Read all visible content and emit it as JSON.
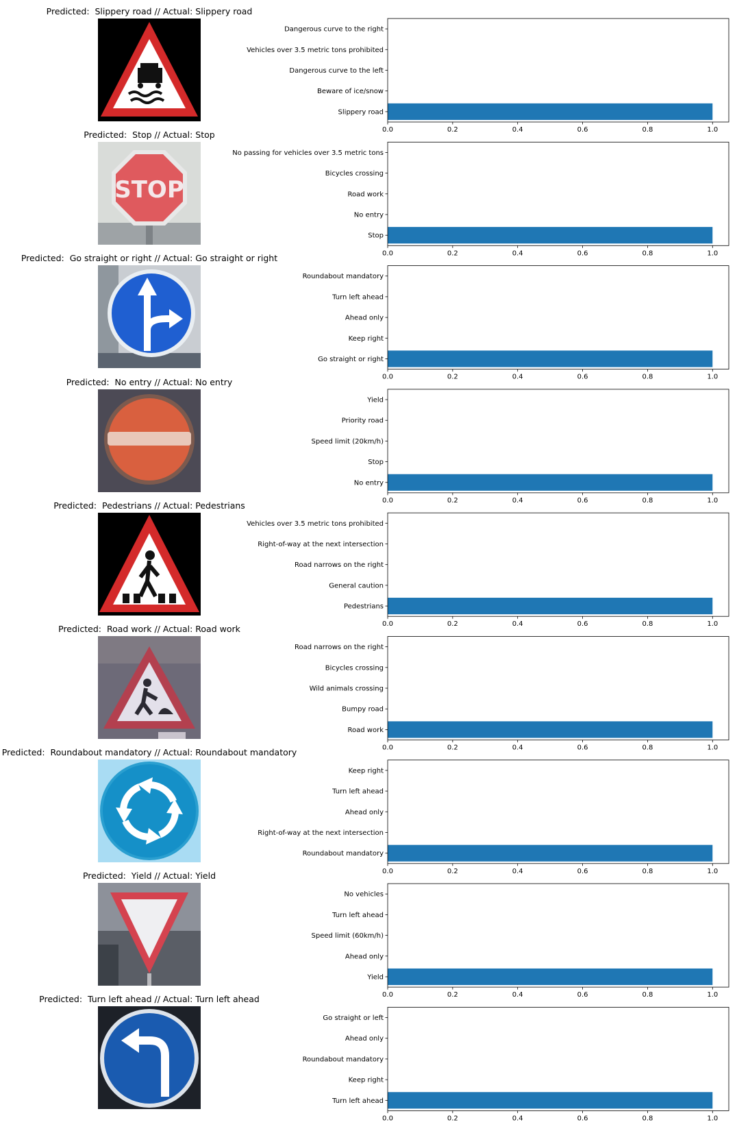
{
  "figure": {
    "panels": [
      {
        "title": "Predicted:  Slippery road // Actual: Slippery road",
        "sign": "slippery-road-sign-image"
      },
      {
        "title": "Predicted:  Stop // Actual: Stop",
        "sign": "stop-sign-image"
      },
      {
        "title": "Predicted:  Go straight or right // Actual: Go straight or right",
        "sign": "go-straight-or-right-sign-image"
      },
      {
        "title": "Predicted:  No entry // Actual: No entry",
        "sign": "no-entry-sign-image"
      },
      {
        "title": "Predicted:  Pedestrians // Actual: Pedestrians",
        "sign": "pedestrians-sign-image"
      },
      {
        "title": "Predicted:  Road work // Actual: Road work",
        "sign": "road-work-sign-image"
      },
      {
        "title": "Predicted:  Roundabout mandatory // Actual: Roundabout mandatory",
        "sign": "roundabout-mandatory-sign-image"
      },
      {
        "title": "Predicted:  Yield // Actual: Yield",
        "sign": "yield-sign-image"
      },
      {
        "title": "Predicted:  Turn left ahead // Actual: Turn left ahead",
        "sign": "turn-left-ahead-sign-image"
      }
    ]
  },
  "colors": {
    "bar": "#1f77b4"
  },
  "chart_data": [
    {
      "type": "bar",
      "orientation": "horizontal",
      "categories": [
        "Slippery road",
        "Beware of ice/snow",
        "Dangerous curve to the left",
        "Vehicles over 3.5 metric tons prohibited",
        "Dangerous curve to the right"
      ],
      "values": [
        1.0,
        0.0,
        0.0,
        0.0,
        0.0
      ],
      "xlim": [
        0,
        1.05
      ],
      "xticks": [
        "0.0",
        "0.2",
        "0.4",
        "0.6",
        "0.8",
        "1.0"
      ]
    },
    {
      "type": "bar",
      "orientation": "horizontal",
      "categories": [
        "Stop",
        "No entry",
        "Road work",
        "Bicycles crossing",
        "No passing for vehicles over 3.5 metric tons"
      ],
      "values": [
        1.0,
        0.0,
        0.0,
        0.0,
        0.0
      ],
      "xlim": [
        0,
        1.05
      ],
      "xticks": [
        "0.0",
        "0.2",
        "0.4",
        "0.6",
        "0.8",
        "1.0"
      ]
    },
    {
      "type": "bar",
      "orientation": "horizontal",
      "categories": [
        "Go straight or right",
        "Keep right",
        "Ahead only",
        "Turn left ahead",
        "Roundabout mandatory"
      ],
      "values": [
        1.0,
        0.0,
        0.0,
        0.0,
        0.0
      ],
      "xlim": [
        0,
        1.05
      ],
      "xticks": [
        "0.0",
        "0.2",
        "0.4",
        "0.6",
        "0.8",
        "1.0"
      ]
    },
    {
      "type": "bar",
      "orientation": "horizontal",
      "categories": [
        "No entry",
        "Stop",
        "Speed limit (20km/h)",
        "Priority road",
        "Yield"
      ],
      "values": [
        1.0,
        0.0,
        0.0,
        0.0,
        0.0
      ],
      "xlim": [
        0,
        1.05
      ],
      "xticks": [
        "0.0",
        "0.2",
        "0.4",
        "0.6",
        "0.8",
        "1.0"
      ]
    },
    {
      "type": "bar",
      "orientation": "horizontal",
      "categories": [
        "Pedestrians",
        "General caution",
        "Road narrows on the right",
        "Right-of-way at the next intersection",
        "Vehicles over 3.5 metric tons prohibited"
      ],
      "values": [
        1.0,
        0.0,
        0.0,
        0.0,
        0.0
      ],
      "xlim": [
        0,
        1.05
      ],
      "xticks": [
        "0.0",
        "0.2",
        "0.4",
        "0.6",
        "0.8",
        "1.0"
      ]
    },
    {
      "type": "bar",
      "orientation": "horizontal",
      "categories": [
        "Road work",
        "Bumpy road",
        "Wild animals crossing",
        "Bicycles crossing",
        "Road narrows on the right"
      ],
      "values": [
        1.0,
        0.0,
        0.0,
        0.0,
        0.0
      ],
      "xlim": [
        0,
        1.05
      ],
      "xticks": [
        "0.0",
        "0.2",
        "0.4",
        "0.6",
        "0.8",
        "1.0"
      ]
    },
    {
      "type": "bar",
      "orientation": "horizontal",
      "categories": [
        "Roundabout mandatory",
        "Right-of-way at the next intersection",
        "Ahead only",
        "Turn left ahead",
        "Keep right"
      ],
      "values": [
        1.0,
        0.0,
        0.0,
        0.0,
        0.0
      ],
      "xlim": [
        0,
        1.05
      ],
      "xticks": [
        "0.0",
        "0.2",
        "0.4",
        "0.6",
        "0.8",
        "1.0"
      ]
    },
    {
      "type": "bar",
      "orientation": "horizontal",
      "categories": [
        "Yield",
        "Ahead only",
        "Speed limit (60km/h)",
        "Turn left ahead",
        "No vehicles"
      ],
      "values": [
        1.0,
        0.0,
        0.0,
        0.0,
        0.0
      ],
      "xlim": [
        0,
        1.05
      ],
      "xticks": [
        "0.0",
        "0.2",
        "0.4",
        "0.6",
        "0.8",
        "1.0"
      ]
    },
    {
      "type": "bar",
      "orientation": "horizontal",
      "categories": [
        "Turn left ahead",
        "Keep right",
        "Roundabout mandatory",
        "Ahead only",
        "Go straight or left"
      ],
      "values": [
        1.0,
        0.0,
        0.0,
        0.0,
        0.0
      ],
      "xlim": [
        0,
        1.05
      ],
      "xticks": [
        "0.0",
        "0.2",
        "0.4",
        "0.6",
        "0.8",
        "1.0"
      ]
    }
  ]
}
